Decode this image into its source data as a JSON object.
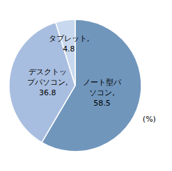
{
  "chart_data": {
    "type": "pie",
    "values": [
      58.5,
      36.8,
      4.8
    ],
    "value_labels": [
      "ノート型パ\nソコン,\n58.5",
      "デスクトッ\nプパソコン,\n36.8",
      "タブレット,\n4.8"
    ],
    "colors": [
      "#7096bc",
      "#a8bee0",
      "#c8d8ee"
    ],
    "data_labels": true,
    "annotation": "(%)"
  }
}
